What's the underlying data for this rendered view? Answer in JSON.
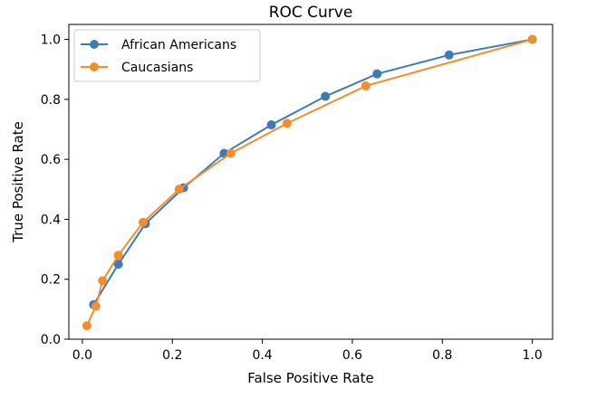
{
  "chart_data": {
    "type": "line",
    "title": "ROC Curve",
    "xlabel": "False Positive Rate",
    "ylabel": "True Positive Rate",
    "xlim": [
      -0.03,
      1.045
    ],
    "ylim": [
      0.0,
      1.05
    ],
    "xticks": [
      0.0,
      0.2,
      0.4,
      0.6,
      0.8,
      1.0
    ],
    "yticks": [
      0.0,
      0.2,
      0.4,
      0.6,
      0.8,
      1.0
    ],
    "xtick_labels": [
      "0.0",
      "0.2",
      "0.4",
      "0.6",
      "0.8",
      "1.0"
    ],
    "ytick_labels": [
      "0.0",
      "0.2",
      "0.4",
      "0.6",
      "0.8",
      "1.0"
    ],
    "grid": false,
    "legend_position": "upper-left",
    "series": [
      {
        "name": "African Americans",
        "color": "#3d7ab8",
        "marker": "circle",
        "x": [
          0.025,
          0.08,
          0.14,
          0.225,
          0.315,
          0.42,
          0.54,
          0.655,
          0.815,
          1.0
        ],
        "y": [
          0.115,
          0.25,
          0.385,
          0.505,
          0.62,
          0.715,
          0.81,
          0.885,
          0.948,
          1.0
        ]
      },
      {
        "name": "Caucasians",
        "color": "#f28e2b",
        "marker": "circle",
        "x": [
          0.01,
          0.03,
          0.045,
          0.08,
          0.135,
          0.215,
          0.33,
          0.455,
          0.63,
          1.0
        ],
        "y": [
          0.045,
          0.11,
          0.195,
          0.28,
          0.39,
          0.5,
          0.62,
          0.72,
          0.845,
          1.0
        ]
      }
    ]
  }
}
